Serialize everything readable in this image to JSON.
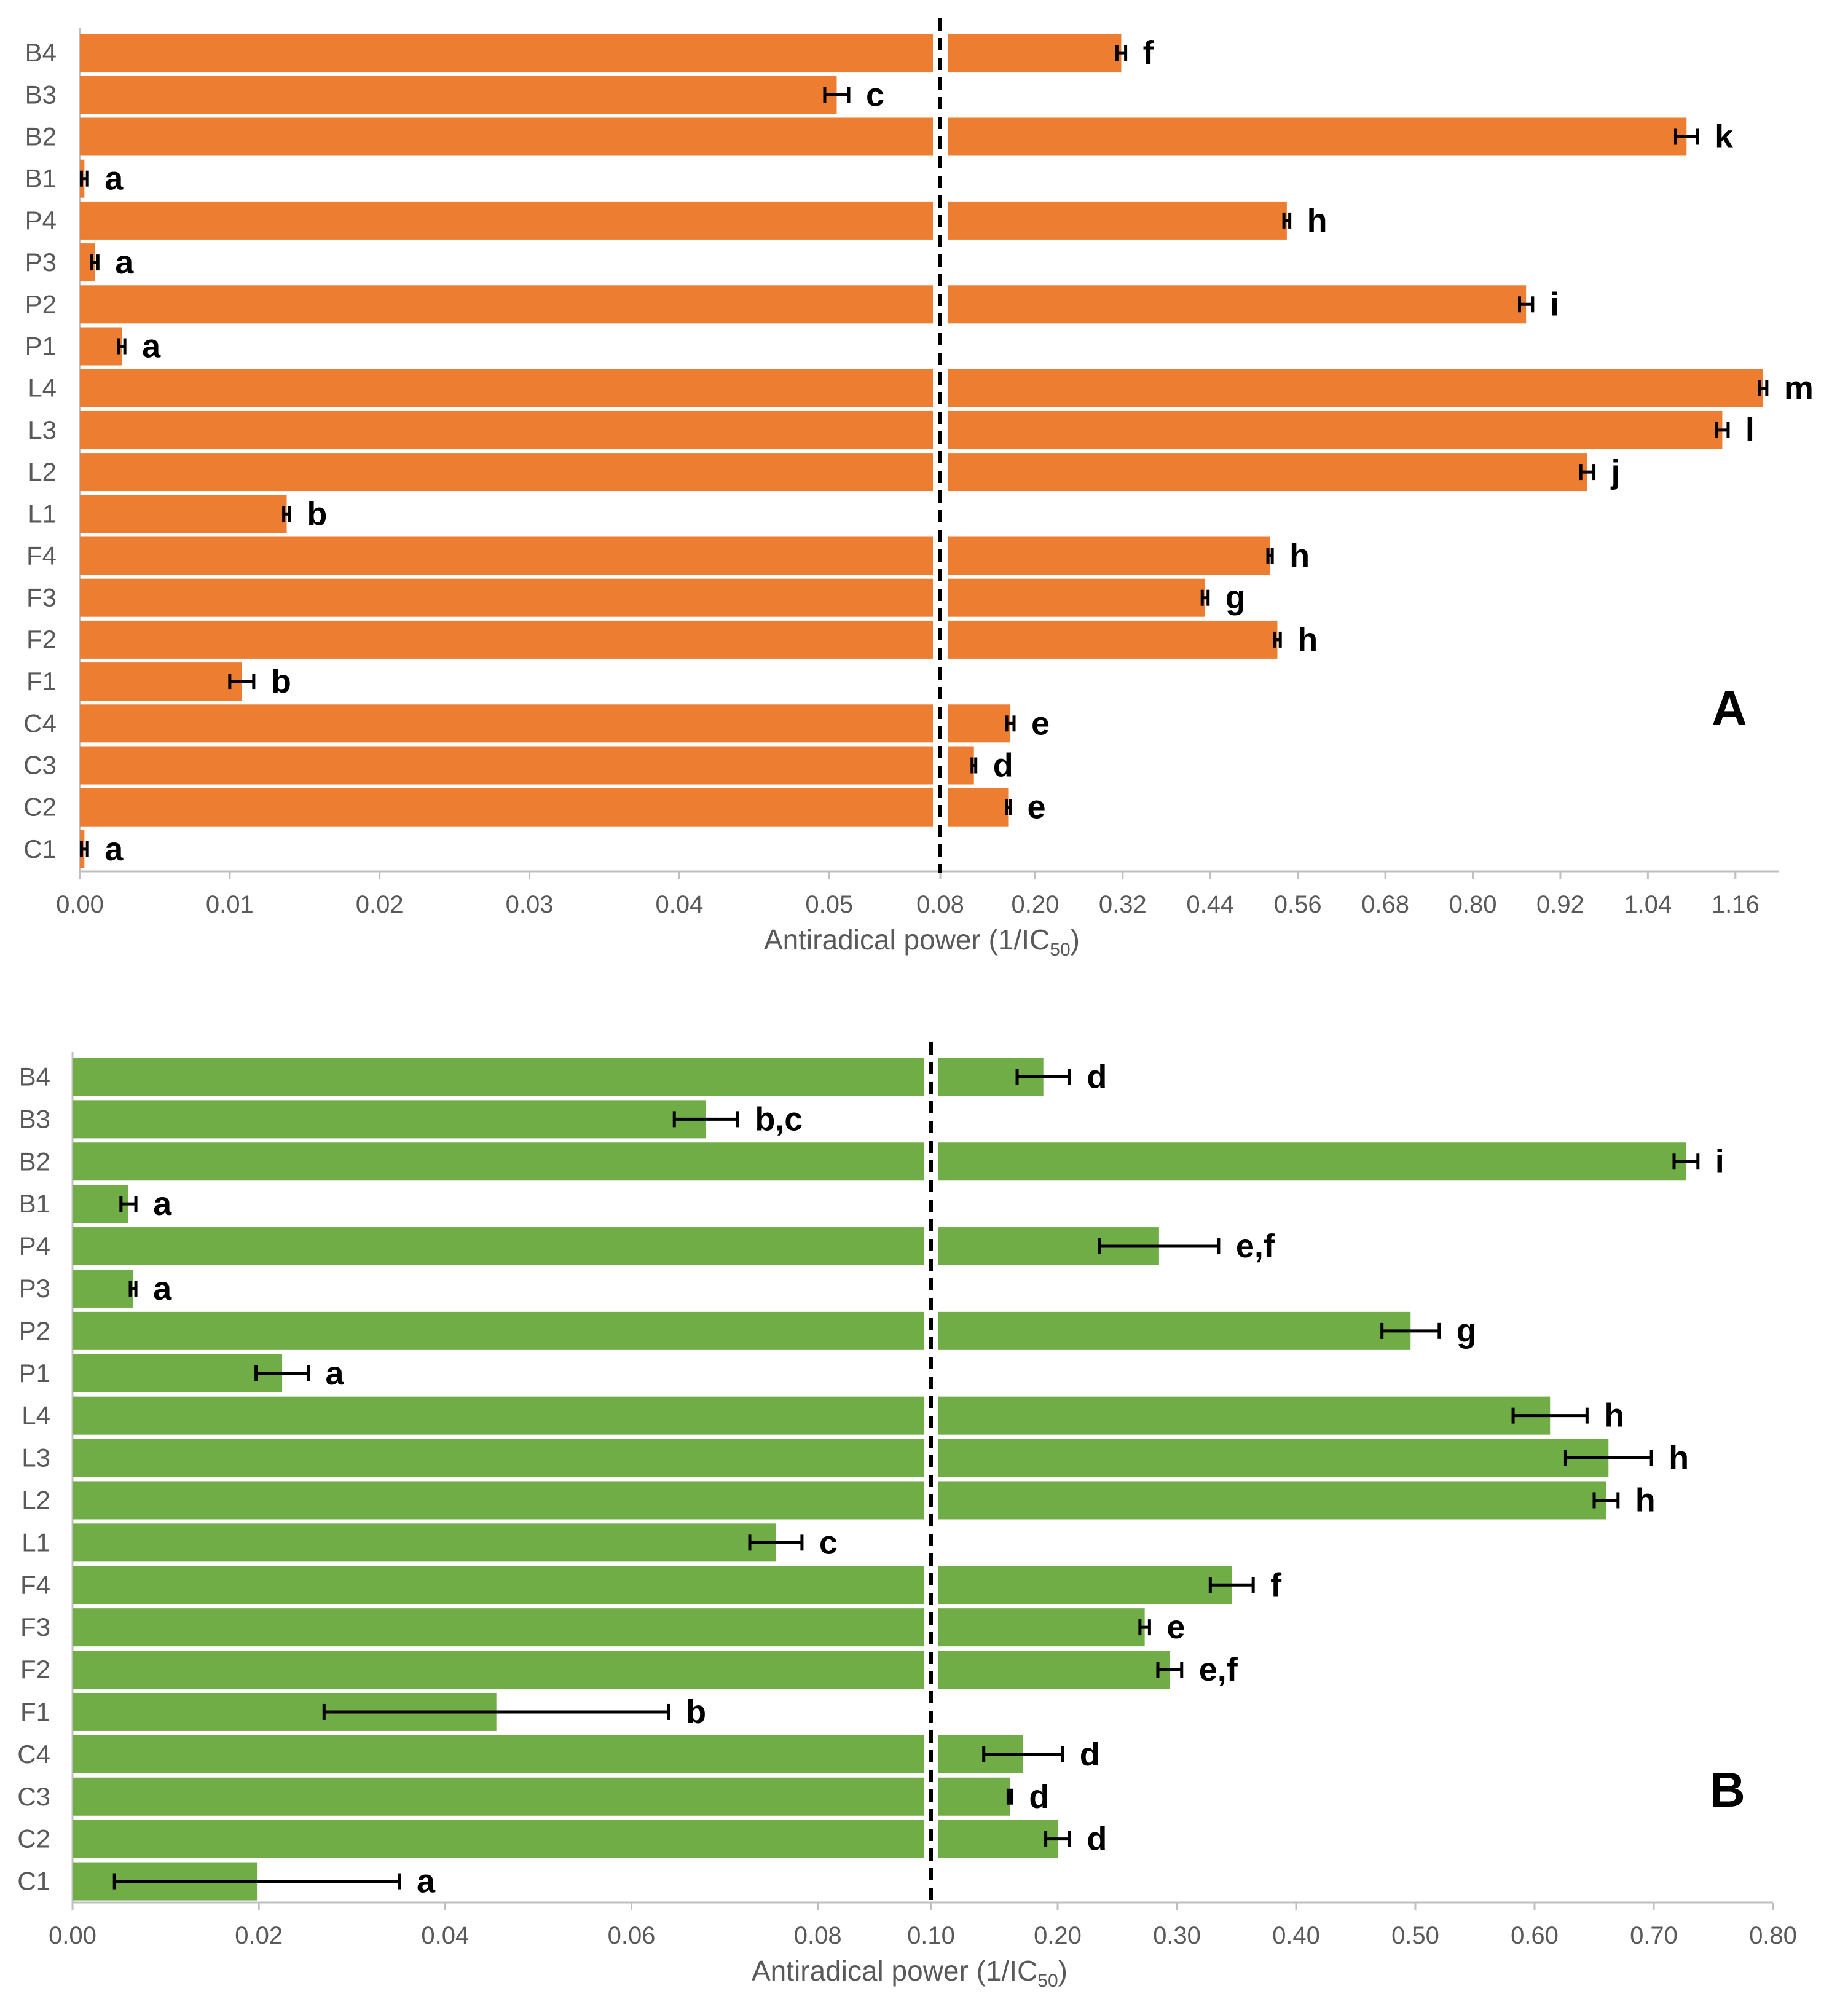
{
  "chart_data": [
    {
      "type": "bar",
      "orientation": "horizontal",
      "panel_label": "A",
      "color": "#ED7D31",
      "xlabel": "Antiradical power (1/IC",
      "xlabel_sub": "50",
      "xlabel_end": ")",
      "broken_axis": {
        "left_range": [
          0,
          0.057
        ],
        "right_range": [
          0.08,
          1.22
        ],
        "left_ticks": [
          "0.00",
          "0.01",
          "0.02",
          "0.03",
          "0.04",
          "0.05"
        ],
        "right_ticks": [
          "0.08",
          "0.20",
          "0.32",
          "0.44",
          "0.56",
          "0.68",
          "0.80",
          "0.92",
          "1.04",
          "1.16"
        ]
      },
      "categories": [
        "B4",
        "B3",
        "B2",
        "B1",
        "P4",
        "P3",
        "P2",
        "P1",
        "L4",
        "L3",
        "L2",
        "L1",
        "F4",
        "F3",
        "F2",
        "F1",
        "C4",
        "C3",
        "C2",
        "C1"
      ],
      "values": [
        0.318,
        0.0505,
        1.093,
        0.0003,
        0.545,
        0.001,
        0.873,
        0.0028,
        1.198,
        1.142,
        0.957,
        0.0138,
        0.522,
        0.433,
        0.532,
        0.0108,
        0.166,
        0.116,
        0.163,
        0.0003
      ],
      "errors": [
        0.006,
        0.0008,
        0.015,
        0.0002,
        0.004,
        0.0002,
        0.009,
        0.0002,
        0.005,
        0.008,
        0.009,
        0.0002,
        0.003,
        0.004,
        0.004,
        0.0008,
        0.005,
        0.002,
        0.002,
        0.0002
      ],
      "significance": [
        "f",
        "c",
        "k",
        "a",
        "h",
        "a",
        "i",
        "a",
        "m",
        "l",
        "j",
        "b",
        "h",
        "g",
        "h",
        "b",
        "e",
        "d",
        "e",
        "a"
      ]
    },
    {
      "type": "bar",
      "orientation": "horizontal",
      "panel_label": "B",
      "color": "#70AD47",
      "xlabel": "Antiradical power (1/IC",
      "xlabel_sub": "50",
      "xlabel_end": ")",
      "broken_axis": {
        "left_range": [
          0,
          0.0915
        ],
        "right_range": [
          0.1,
          0.8
        ],
        "left_ticks": [
          "0.00",
          "0.02",
          "0.04",
          "0.06",
          "0.08"
        ],
        "right_ticks": [
          "0.10",
          "0.20",
          "0.30",
          "0.40",
          "0.50",
          "0.60",
          "0.70",
          "0.80"
        ]
      },
      "categories": [
        "B4",
        "B3",
        "B2",
        "B1",
        "P4",
        "P3",
        "P2",
        "P1",
        "L4",
        "L3",
        "L2",
        "L1",
        "F4",
        "F3",
        "F2",
        "F1",
        "C4",
        "C3",
        "C2",
        "C1"
      ],
      "values": [
        0.188,
        0.068,
        0.727,
        0.006,
        0.285,
        0.0065,
        0.496,
        0.0225,
        0.613,
        0.662,
        0.66,
        0.0755,
        0.346,
        0.273,
        0.294,
        0.0455,
        0.171,
        0.16,
        0.2,
        0.0198
      ],
      "errors": [
        0.022,
        0.0034,
        0.01,
        0.0008,
        0.05,
        0.0003,
        0.024,
        0.0028,
        0.031,
        0.036,
        0.01,
        0.0028,
        0.018,
        0.004,
        0.01,
        0.0185,
        0.033,
        0.001,
        0.01,
        0.0153
      ],
      "significance": [
        "d",
        "b,c",
        "i",
        "a",
        "e,f",
        "a",
        "g",
        "a",
        "h",
        "h",
        "h",
        "c",
        "f",
        "e",
        "e,f",
        "b",
        "d",
        "d",
        "d",
        "a"
      ]
    }
  ]
}
